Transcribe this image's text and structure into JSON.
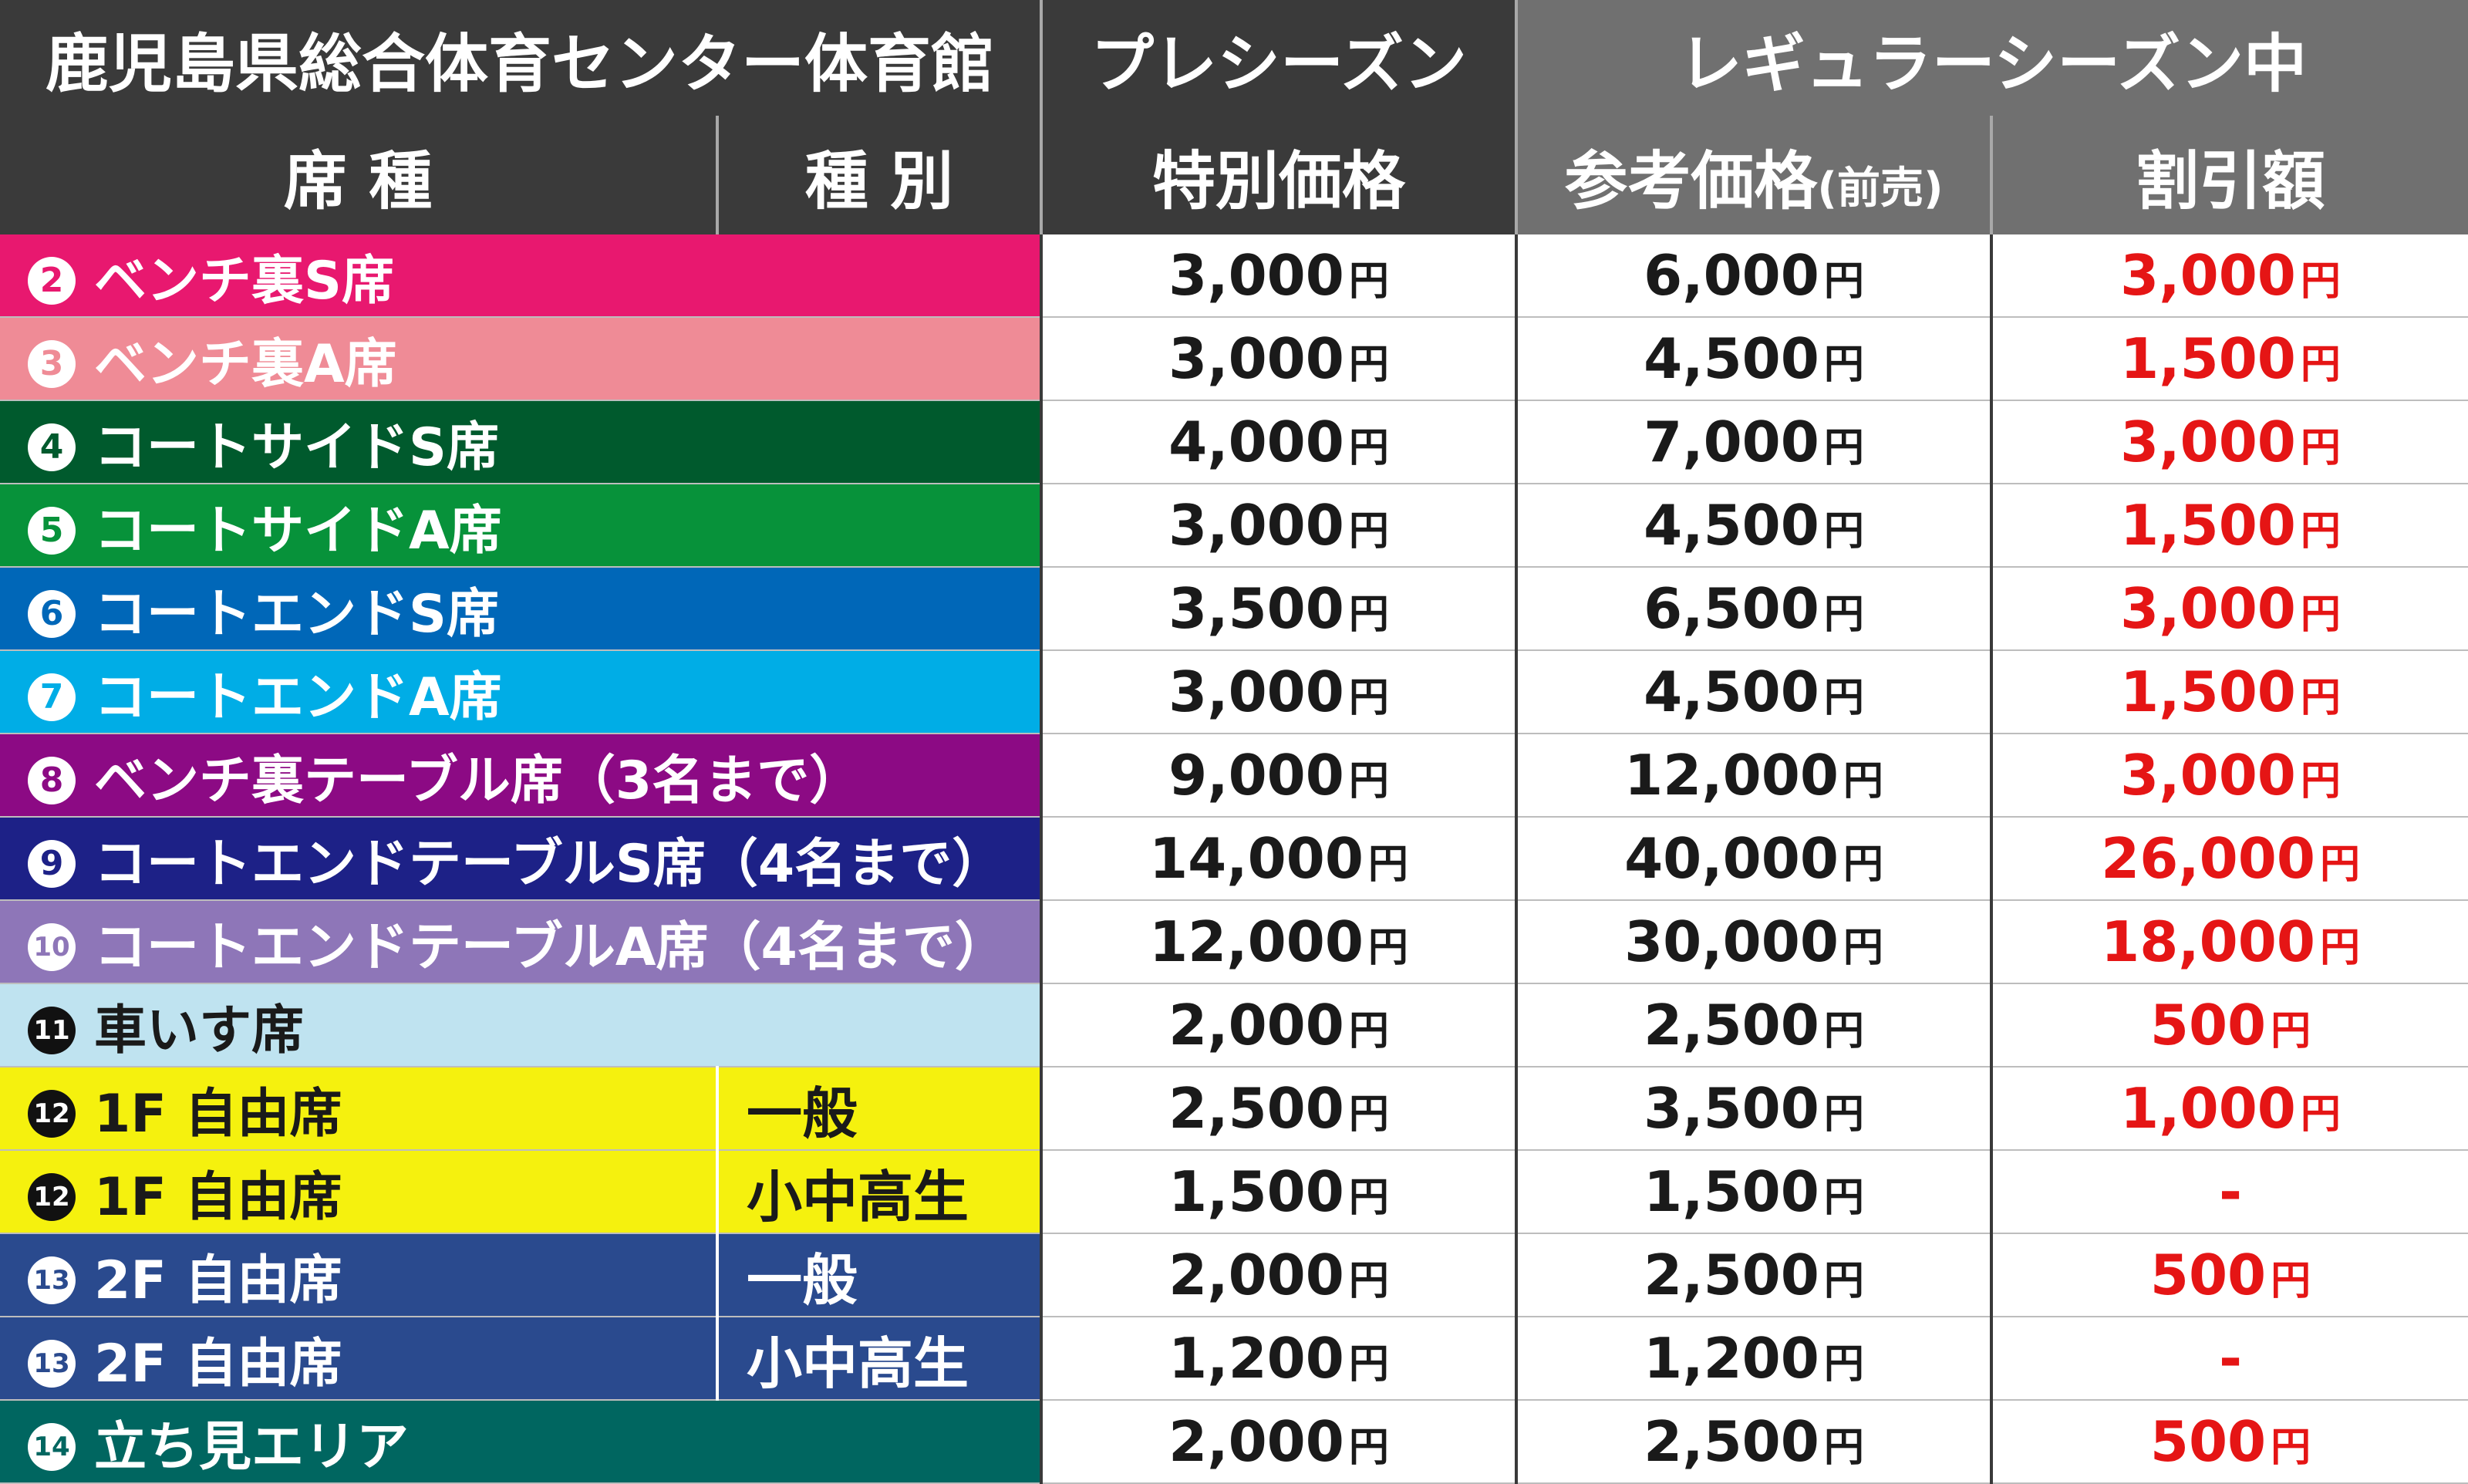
{
  "header": {
    "venue": "鹿児島県総合体育センター体育館",
    "preseason": "プレシーズン",
    "regular": "レギュラーシーズン中",
    "seat_type": "席 種",
    "category": "種 別",
    "special_price": "特別価格",
    "reference_price": "参考価格",
    "reference_note": "(前売)",
    "discount": "割引額"
  },
  "yen": "円",
  "rows": [
    {
      "no": "2",
      "seat": "ベンチ裏S席",
      "kind": "",
      "color": "#e8186f",
      "pre": "3,000",
      "ref": "6,000",
      "disc": "3,000"
    },
    {
      "no": "3",
      "seat": "ベンチ裏A席",
      "kind": "",
      "color": "#ef8b96",
      "pre": "3,000",
      "ref": "4,500",
      "disc": "1,500"
    },
    {
      "no": "4",
      "seat": "コートサイドS席",
      "kind": "",
      "color": "#005a2d",
      "pre": "4,000",
      "ref": "7,000",
      "disc": "3,000"
    },
    {
      "no": "5",
      "seat": "コートサイドA席",
      "kind": "",
      "color": "#07923a",
      "pre": "3,000",
      "ref": "4,500",
      "disc": "1,500"
    },
    {
      "no": "6",
      "seat": "コートエンドS席",
      "kind": "",
      "color": "#0067b8",
      "pre": "3,500",
      "ref": "6,500",
      "disc": "3,000"
    },
    {
      "no": "7",
      "seat": "コートエンドA席",
      "kind": "",
      "color": "#00ade6",
      "pre": "3,000",
      "ref": "4,500",
      "disc": "1,500"
    },
    {
      "no": "8",
      "seat": "ベンチ裏テーブル席（3名まで）",
      "kind": "",
      "color": "#8c0a84",
      "pre": "9,000",
      "ref": "12,000",
      "disc": "3,000"
    },
    {
      "no": "9",
      "seat": "コートエンドテーブルS席（4名まで）",
      "kind": "",
      "color": "#1d2187",
      "pre": "14,000",
      "ref": "40,000",
      "disc": "26,000"
    },
    {
      "no": "10",
      "seat": "コートエンドテーブルA席（4名まで）",
      "kind": "",
      "color": "#8e76b8",
      "pre": "12,000",
      "ref": "30,000",
      "disc": "18,000"
    },
    {
      "no": "11",
      "seat": "車いす席",
      "kind": "",
      "color": "#bfe3f0",
      "pre": "2,000",
      "ref": "2,500",
      "disc": "500"
    },
    {
      "no": "12",
      "seat": "1F 自由席",
      "kind": "一般",
      "color": "#f5f10e",
      "pre": "2,500",
      "ref": "3,500",
      "disc": "1,000"
    },
    {
      "no": "12",
      "seat": "1F 自由席",
      "kind": "小中高生",
      "color": "#f5f10e",
      "pre": "1,500",
      "ref": "1,500",
      "disc": "-"
    },
    {
      "no": "13",
      "seat": "2F 自由席",
      "kind": "一般",
      "color": "#2a4a8e",
      "pre": "2,000",
      "ref": "2,500",
      "disc": "500"
    },
    {
      "no": "13",
      "seat": "2F 自由席",
      "kind": "小中高生",
      "color": "#2a4a8e",
      "pre": "1,200",
      "ref": "1,200",
      "disc": "-"
    },
    {
      "no": "14",
      "seat": "立ち見エリア",
      "kind": "",
      "color": "#006660",
      "pre": "2,000",
      "ref": "2,500",
      "disc": "500"
    }
  ]
}
